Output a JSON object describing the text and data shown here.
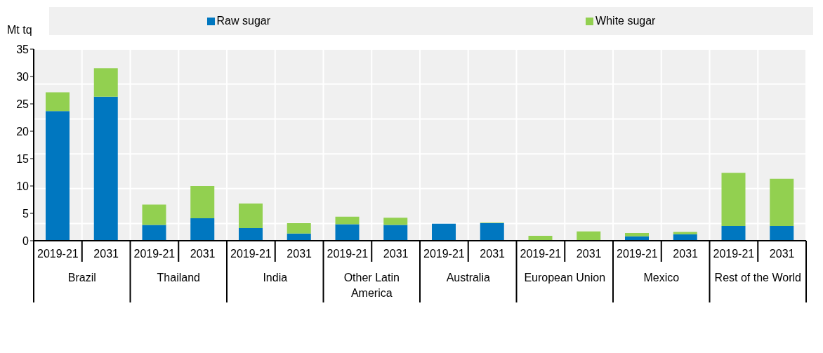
{
  "chart_data": {
    "type": "bar",
    "ylabel": "Mt tq",
    "stacked": true,
    "grid": true,
    "legend": "top",
    "categories": [
      "2019-21",
      "2031",
      "2019-21",
      "2031",
      "2019-21",
      "2031",
      "2019-21",
      "2031",
      "2019-21",
      "2031",
      "2019-21",
      "2031",
      "2019-21",
      "2031",
      "2019-21",
      "2031"
    ],
    "annotations": [
      "Brazil",
      "Thailand",
      "India",
      "Other Latin America",
      "Australia",
      "European Union",
      "Mexico",
      "Rest of the World"
    ],
    "series": [
      {
        "name": "Raw sugar",
        "color": "#0077c0",
        "values": [
          23.7,
          26.3,
          2.9,
          4.1,
          2.3,
          1.3,
          3.0,
          2.9,
          3.1,
          3.2,
          0,
          0,
          0.8,
          1.2,
          2.7,
          2.7
        ]
      },
      {
        "name": "White sugar",
        "color": "#92d050",
        "values": [
          3.4,
          5.2,
          3.7,
          5.9,
          4.5,
          1.9,
          1.4,
          1.3,
          0,
          0.1,
          0.9,
          1.7,
          0.6,
          0.4,
          9.7,
          8.6
        ]
      }
    ],
    "ylim": [
      0,
      35
    ],
    "yticks": [
      0,
      5,
      10,
      15,
      20,
      25,
      30,
      35
    ]
  }
}
